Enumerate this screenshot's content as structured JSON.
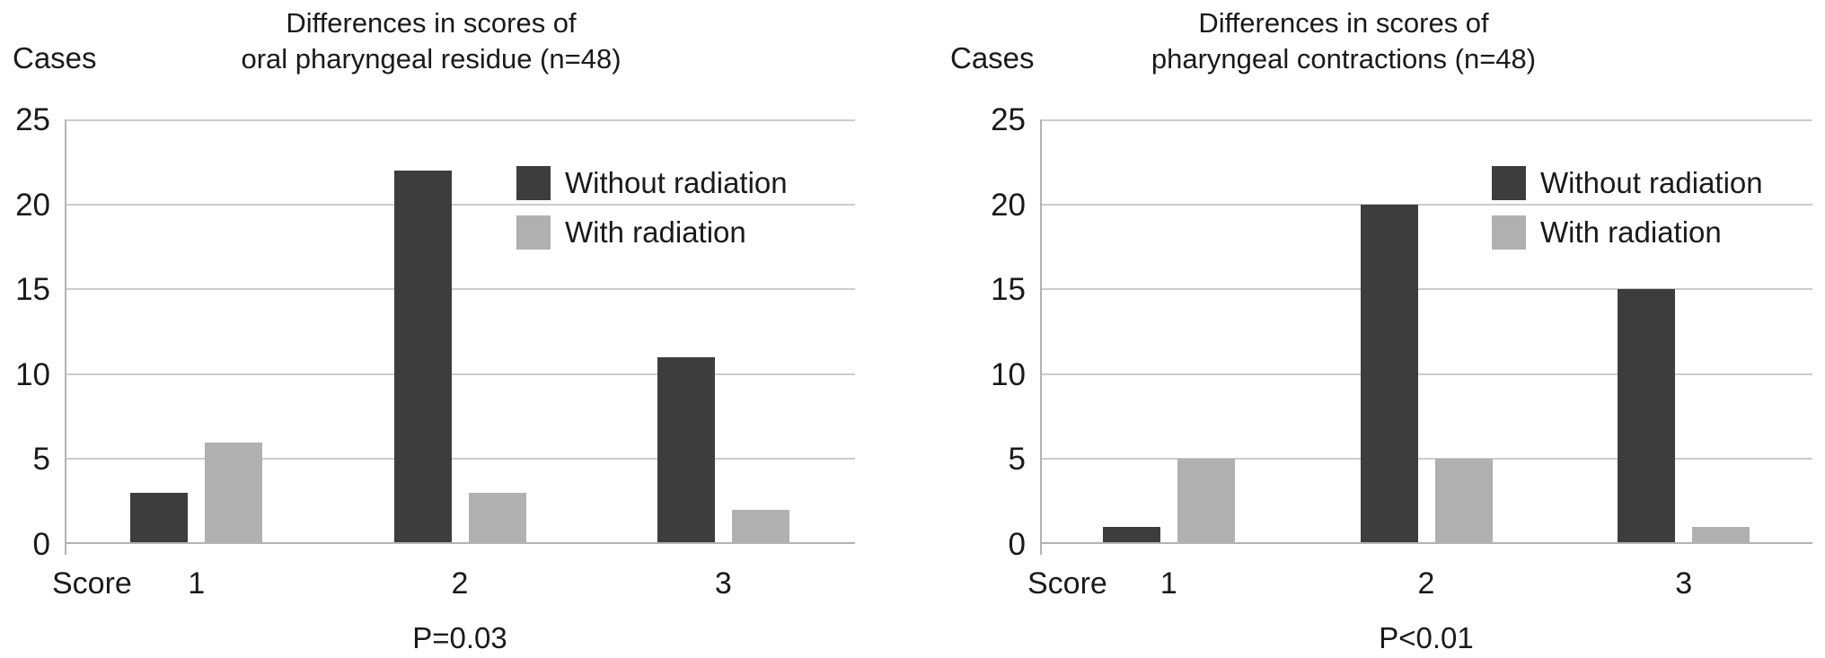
{
  "figure": {
    "background": "#ffffff",
    "text_color": "#1a1a1a"
  },
  "colors": {
    "without_radiation": "#3d3d3d",
    "with_radiation": "#b0b0b0",
    "gridline": "#cccccc",
    "axis": "#b3b3b3"
  },
  "chart_data": [
    {
      "type": "bar",
      "title_lines": [
        "Differences in scores of",
        "oral pharyngeal residue (n=48)"
      ],
      "ylabel": "Cases",
      "xlabel_prefix": "Score",
      "categories": [
        "1",
        "2",
        "3"
      ],
      "series": [
        {
          "name": "Without radiation",
          "values": [
            3,
            22,
            11
          ],
          "color": "#3d3d3d"
        },
        {
          "name": "With radiation",
          "values": [
            6,
            3,
            2
          ],
          "color": "#b0b0b0"
        }
      ],
      "ylim": [
        0,
        25
      ],
      "yticks": [
        "25",
        "20",
        "15",
        "10",
        "5",
        "0"
      ],
      "grid": true,
      "legend_position": "upper-right-inside",
      "annotation": "P=0.03"
    },
    {
      "type": "bar",
      "title_lines": [
        "Differences in scores of",
        "pharyngeal contractions (n=48)"
      ],
      "ylabel": "Cases",
      "xlabel_prefix": "Score",
      "categories": [
        "1",
        "2",
        "3"
      ],
      "series": [
        {
          "name": "Without radiation",
          "values": [
            1,
            20,
            15
          ],
          "color": "#3d3d3d"
        },
        {
          "name": "With radiation",
          "values": [
            5,
            5,
            1
          ],
          "color": "#b0b0b0"
        }
      ],
      "ylim": [
        0,
        25
      ],
      "yticks": [
        "25",
        "20",
        "15",
        "10",
        "5",
        "0"
      ],
      "grid": true,
      "legend_position": "upper-right-inside",
      "annotation": "P<0.01"
    }
  ]
}
